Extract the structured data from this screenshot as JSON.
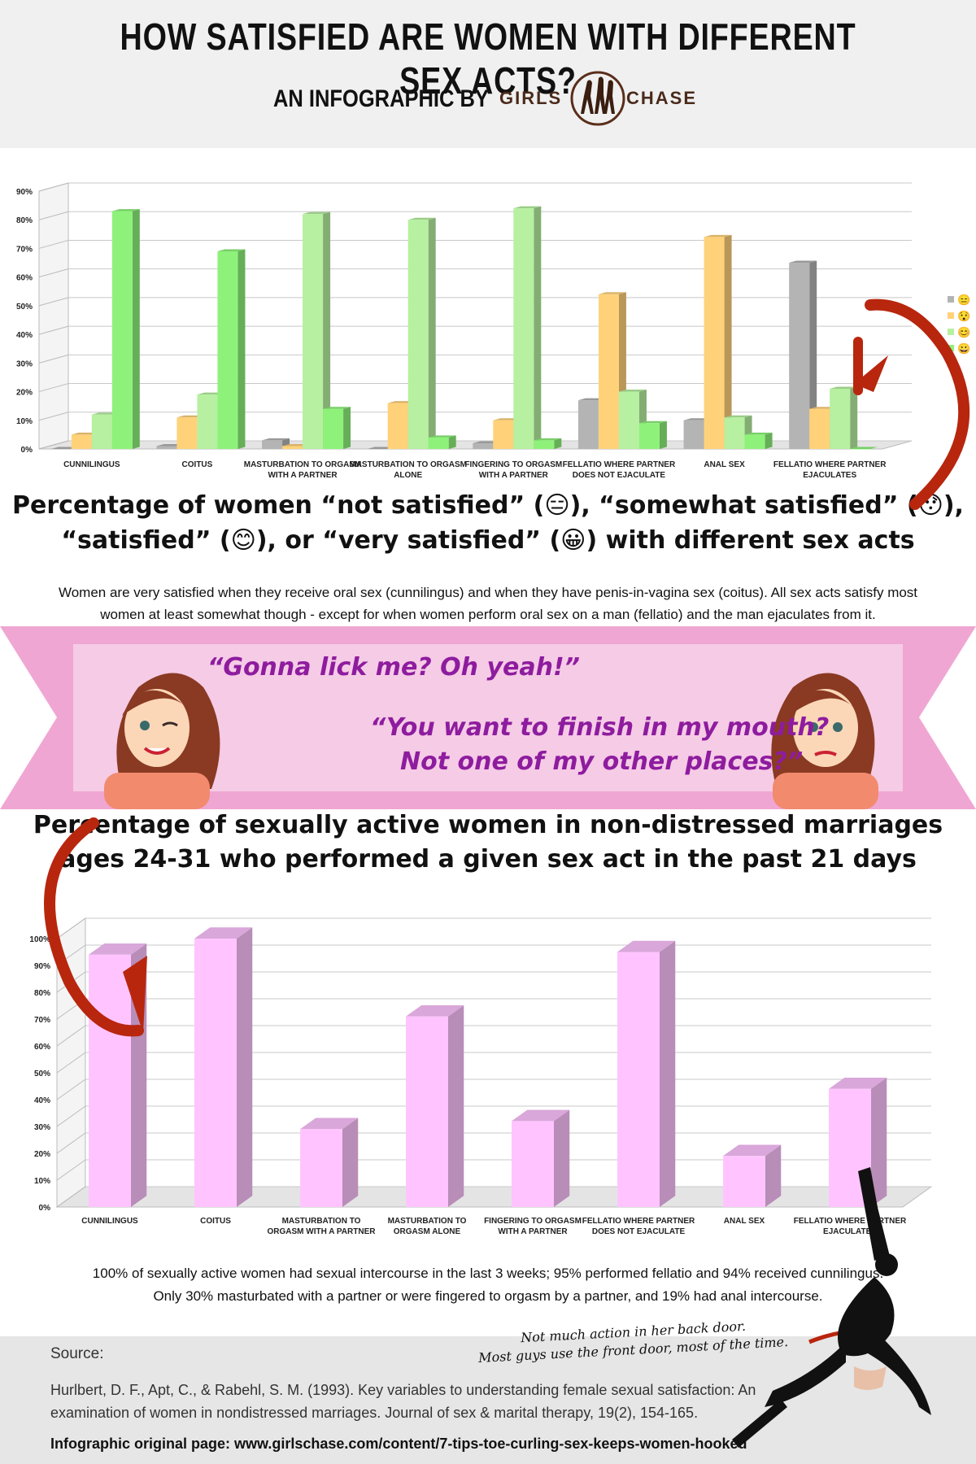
{
  "header": {
    "title": "HOW SATISFIED ARE WOMEN WITH DIFFERENT SEX ACTS?",
    "byline": "AN INFOGRAPHIC BY",
    "logo_word_left": "GIRLS",
    "logo_word_right": "CHASE"
  },
  "chart_data": [
    {
      "type": "bar",
      "categories": [
        "CUNNILINGUS",
        "COITUS",
        "MASTURBATION TO ORGASM WITH A PARTNER",
        "MASTURBATION TO ORGASM ALONE",
        "FINGERING TO ORGASM WITH A PARTNER",
        "FELLATIO WHERE PARTNER DOES NOT EJACULATE",
        "ANAL SEX",
        "FELLATIO WHERE PARTNER EJACULATES"
      ],
      "category_lines": [
        [
          "CUNNILINGUS"
        ],
        [
          "COITUS"
        ],
        [
          "MASTURBATION TO ORGASM",
          "WITH A PARTNER"
        ],
        [
          "MASTURBATION TO ORGASM",
          "ALONE"
        ],
        [
          "FINGERING TO ORGASM",
          "WITH A PARTNER"
        ],
        [
          "FELLATIO WHERE PARTNER",
          "DOES NOT EJACULATE"
        ],
        [
          "ANAL SEX"
        ],
        [
          "FELLATIO WHERE PARTNER",
          "EJACULATES"
        ]
      ],
      "series": [
        {
          "legend": "😑",
          "color": "#b4b4b4",
          "values": [
            0,
            1,
            3,
            0,
            2,
            17,
            10,
            65
          ]
        },
        {
          "legend": "😯",
          "color": "#ffd27a",
          "values": [
            5,
            11,
            1,
            16,
            10,
            54,
            74,
            14
          ]
        },
        {
          "legend": "😊",
          "color": "#b6f0a0",
          "values": [
            12,
            19,
            82,
            80,
            84,
            20,
            11,
            21
          ]
        },
        {
          "legend": "😀",
          "color": "#8ef27a",
          "values": [
            83,
            69,
            14,
            4,
            3,
            9,
            5,
            0
          ]
        }
      ],
      "y_ticks": [
        "0%",
        "10%",
        "20%",
        "30%",
        "40%",
        "50%",
        "60%",
        "70%",
        "80%",
        "90%"
      ],
      "ylim": [
        0,
        90
      ],
      "legend_position": "right"
    },
    {
      "type": "bar",
      "categories": [
        "CUNNILINGUS",
        "COITUS",
        "MASTURBATION TO ORGASM WITH A PARTNER",
        "MASTURBATION TO ORGASM ALONE",
        "FINGERING TO ORGASM WITH A PARTNER",
        "FELLATIO WHERE PARTNER DOES NOT EJACULATE",
        "ANAL SEX",
        "FELLATIO WHERE PARTNER EJACULATES"
      ],
      "category_lines": [
        [
          "CUNNILINGUS"
        ],
        [
          "COITUS"
        ],
        [
          "MASTURBATION TO",
          "ORGASM WITH A PARTNER"
        ],
        [
          "MASTURBATION TO",
          "ORGASM ALONE"
        ],
        [
          "FINGERING TO ORGASM",
          "WITH A PARTNER"
        ],
        [
          "FELLATIO WHERE PARTNER",
          "DOES NOT EJACULATE"
        ],
        [
          "ANAL SEX"
        ],
        [
          "FELLATIO WHERE PARTNER",
          "EJACULATES"
        ]
      ],
      "series": [
        {
          "color": "#ffc4ff",
          "values": [
            94,
            100,
            29,
            71,
            32,
            95,
            19,
            44
          ]
        }
      ],
      "y_ticks": [
        "0%",
        "10%",
        "20%",
        "30%",
        "40%",
        "50%",
        "60%",
        "70%",
        "80%",
        "90%",
        "100%"
      ],
      "ylim": [
        0,
        100
      ]
    }
  ],
  "captions": {
    "chart1_line1": "Percentage of women “not satisfied” (😑), “somewhat satisfied” (😯),",
    "chart1_line2": "“satisfied” (😊), or “very satisfied” (😀) with different sex acts",
    "chart1_para": "Women are very satisfied when they receive oral sex (cunnilingus) and when they have penis-in-vagina sex (coitus). All sex acts satisfy most women at least somewhat though - except for when women perform oral sex on a man (fellatio) and the man ejaculates from it.",
    "chart2_line1": "Percentage of sexually active women in non-distressed marriages",
    "chart2_line2": "ages 24-31 who performed a given sex act in the past 21 days",
    "chart2_para1": "100% of sexually active women had sexual intercourse in the last 3 weeks; 95% performed fellatio and 94% received cunnilingus.",
    "chart2_para2": "Only 30% masturbated with a partner or were fingered to orgasm by a partner, and 19% had anal intercourse."
  },
  "quotes": {
    "happy": "“Gonna lick me? Oh yeah!”",
    "sad_line1": "“You want to finish in my mouth?",
    "sad_line2": "Not one of my other places?”"
  },
  "note": {
    "line1": "Not much action in her back door.",
    "line2": "Most guys use the front door, most of the time."
  },
  "source": {
    "heading": "Source:",
    "citation_line1": "Hurlbert, D. F., Apt, C., & Rabehl, S. M. (1993). Key variables to understanding female sexual satisfaction: An",
    "citation_line2": "examination of women in nondistressed marriages. Journal of sex & marital therapy, 19(2), 154-165.",
    "link": "Infographic original page: www.girlschase.com/content/7-tips-toe-curling-sex-keeps-women-hooked"
  }
}
